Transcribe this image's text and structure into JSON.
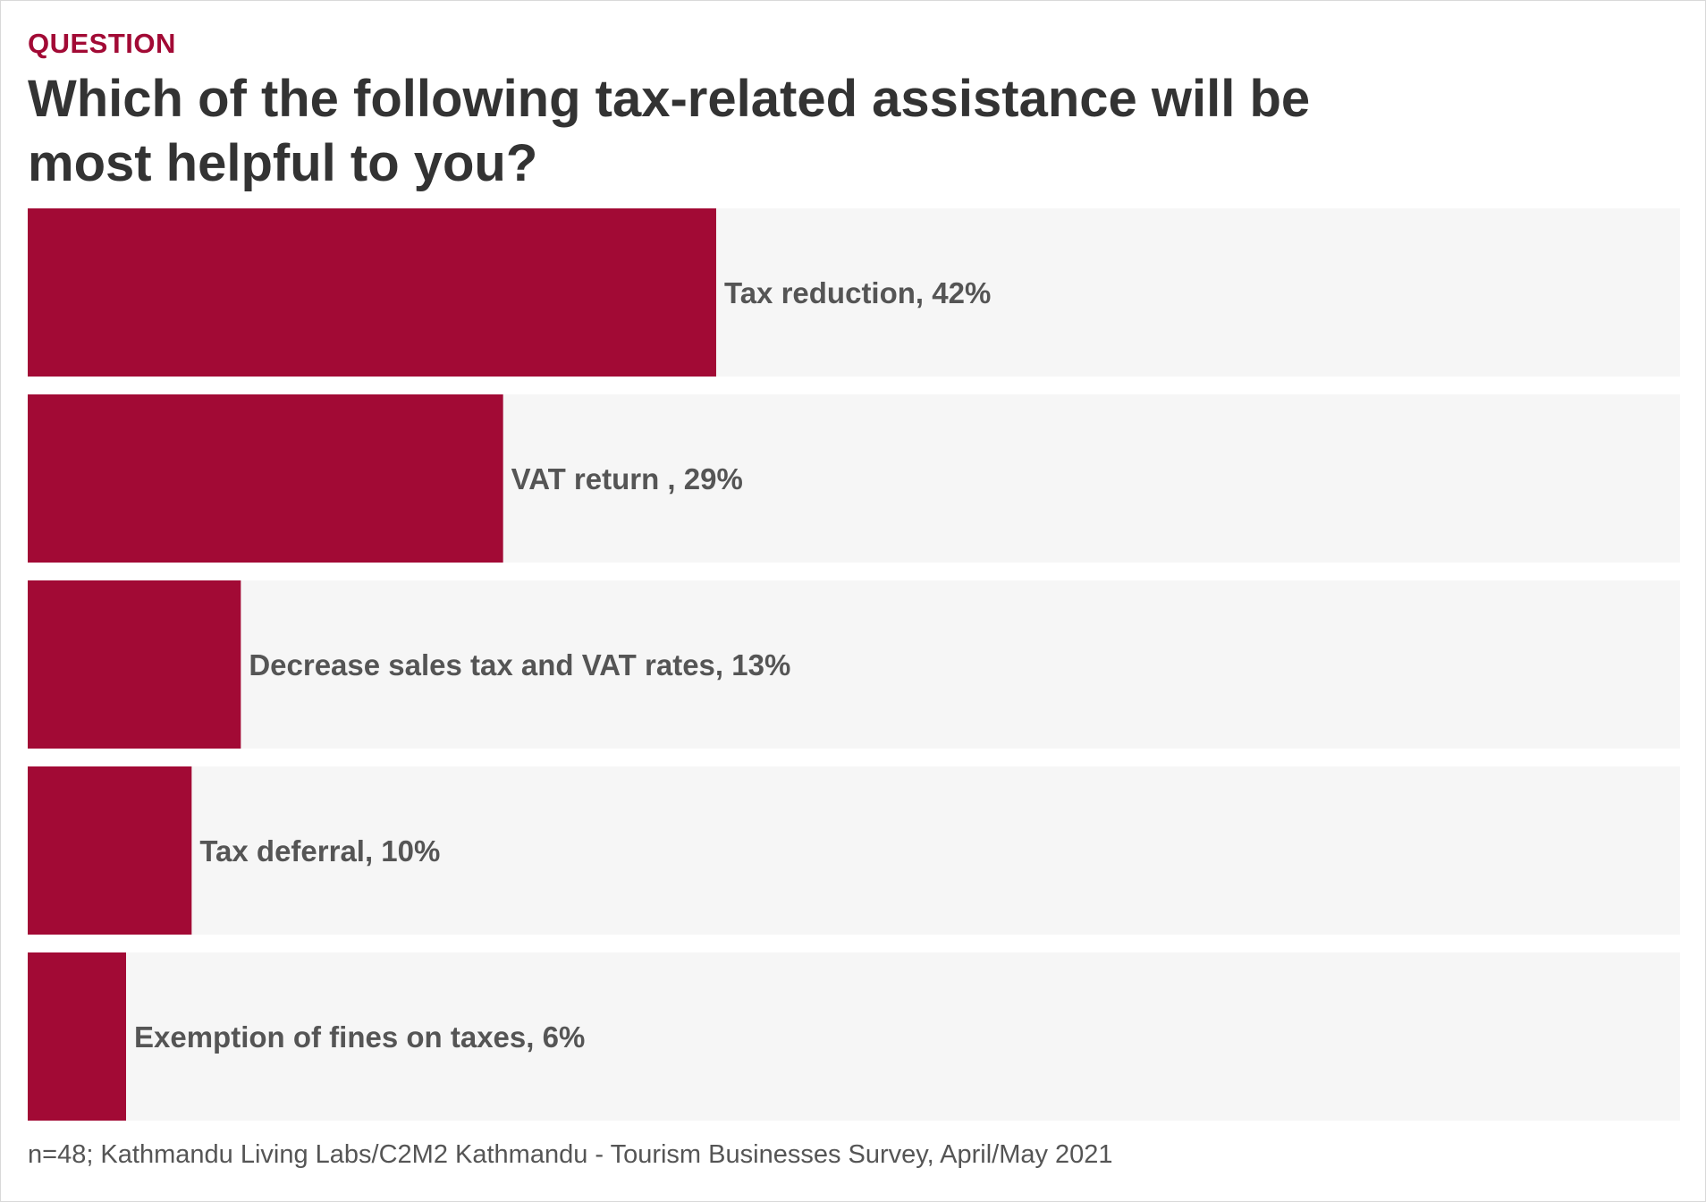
{
  "header": {
    "eyebrow": "QUESTION",
    "title": "Which of the following tax-related assistance will be most helpful to you?"
  },
  "footnote": "n=48; Kathmandu Living Labs/C2M2 Kathmandu - Tourism Businesses Survey, April/May 2021",
  "colors": {
    "bar": "#a20a35",
    "track": "#f6f6f6",
    "label": "#555555"
  },
  "chart_data": {
    "type": "bar",
    "orientation": "horizontal",
    "title": "Which of the following tax-related assistance will be most helpful to you?",
    "categories": [
      "Tax reduction",
      "VAT return ",
      "Decrease sales tax and VAT rates",
      "Tax deferral",
      "Exemption of fines on taxes"
    ],
    "values": [
      42,
      29,
      13,
      10,
      6
    ],
    "labels": [
      "Tax reduction, 42%",
      "VAT return , 29%",
      "Decrease sales tax and VAT rates, 13%",
      "Tax deferral, 10%",
      "Exemption of fines on taxes, 6%"
    ],
    "unit": "%",
    "xlim": [
      0,
      100
    ],
    "grid": false,
    "legend": "none"
  }
}
